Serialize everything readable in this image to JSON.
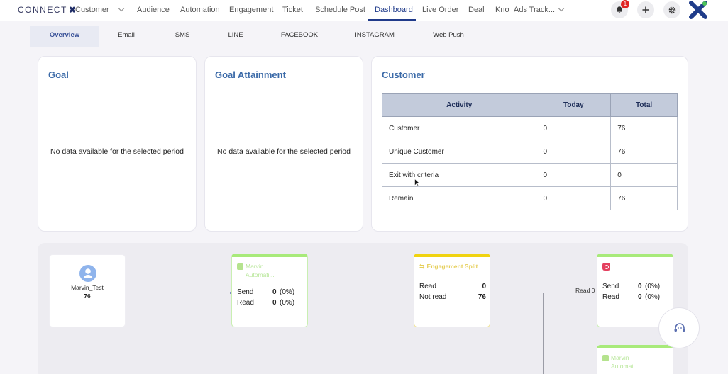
{
  "brand": {
    "name": "CONNECT",
    "mark": "✖"
  },
  "nav": {
    "items": [
      "Customer",
      "Audience",
      "Automation",
      "Engagement",
      "Ticket",
      "Schedule Post",
      "Dashboard",
      "Live Order",
      "Deal",
      "Knov",
      "Ads Track..."
    ],
    "active": "Dashboard"
  },
  "notifications": {
    "count": "1"
  },
  "tabs": [
    "Overview",
    "Email",
    "SMS",
    "LINE",
    "FACEBOOK",
    "INSTAGRAM",
    "Web Push"
  ],
  "active_tab": "Overview",
  "goal": {
    "title": "Goal",
    "message": "No data available for the selected period"
  },
  "goal_attainment": {
    "title": "Goal Attainment",
    "message": "No data available for the selected period"
  },
  "customer": {
    "title": "Customer",
    "headers": [
      "Activity",
      "Today",
      "Total"
    ],
    "rows": [
      [
        "Customer",
        "0",
        "76"
      ],
      [
        "Unique Customer",
        "0",
        "76"
      ],
      [
        "Exit with criteria",
        "0",
        "0"
      ],
      [
        "Remain",
        "0",
        "76"
      ]
    ]
  },
  "flow": {
    "start": {
      "name": "Marvin_Test",
      "count": "76"
    },
    "fb_node": {
      "title1": "Marvin",
      "title2": "Automati...",
      "send_label": "Send",
      "send_value": "0",
      "send_pct": "(0%)",
      "read_label": "Read",
      "read_value": "0",
      "read_pct": "(0%)"
    },
    "split_node": {
      "title": "Engagement Split",
      "read_label": "Read",
      "read_value": "0",
      "notread_label": "Not read",
      "notread_value": "76"
    },
    "ig_node": {
      "title": ".",
      "send_label": "Send",
      "send_value": "0",
      "send_pct": "(0%)",
      "read_label": "Read",
      "read_value": "0",
      "read_pct": "(0%)"
    },
    "edge_label": "Read 0",
    "bottom_node": {
      "title1": "Marvin",
      "title2": "Automati..."
    }
  }
}
